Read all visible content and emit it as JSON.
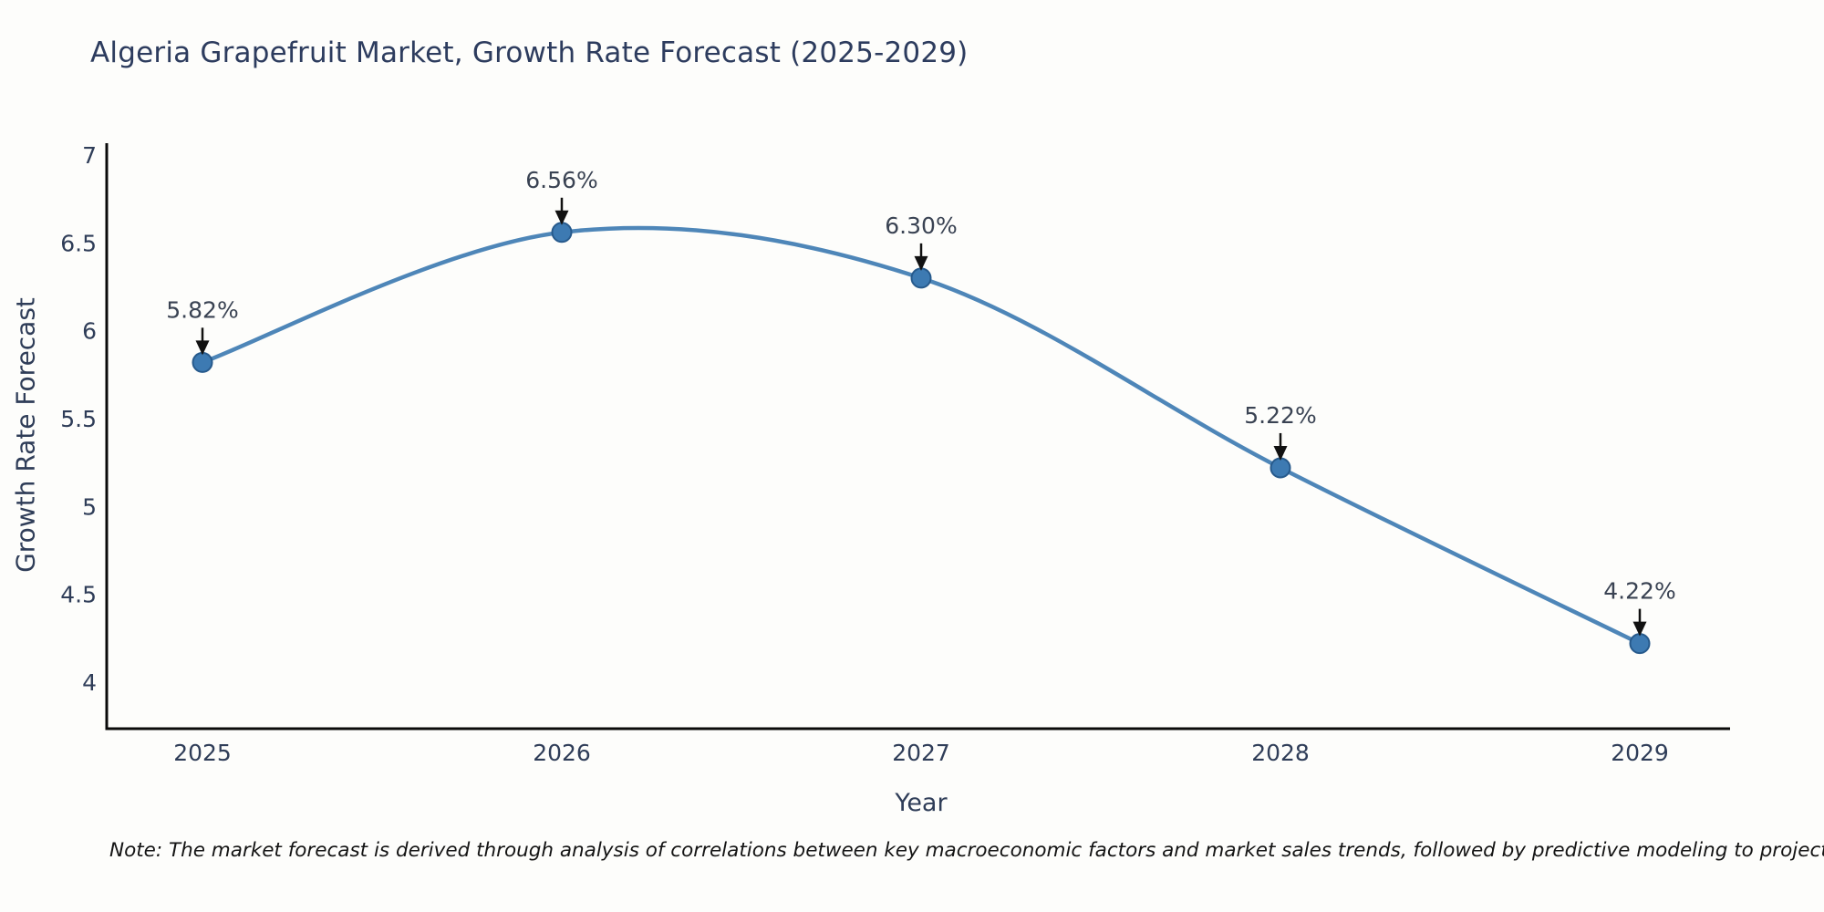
{
  "title": {
    "text": "Algeria Grapefruit Market, Growth Rate Forecast (2025-2029)"
  },
  "note": {
    "text": "Note: The market forecast is derived through analysis of correlations between key macroeconomic factors and market sales trends, followed by predictive modeling to project future sales"
  },
  "chart_data": {
    "type": "line",
    "title": "Algeria Grapefruit Market, Growth Rate Forecast (2025-2029)",
    "x": [
      "2025",
      "2026",
      "2027",
      "2028",
      "2029"
    ],
    "series": [
      {
        "name": "Growth Rate Forecast",
        "values": [
          5.82,
          6.56,
          6.3,
          5.22,
          4.22
        ]
      }
    ],
    "point_labels": [
      "5.82%",
      "6.56%",
      "6.30%",
      "5.22%",
      "4.22%"
    ],
    "xlabel": "Year",
    "ylabel": "Growth Rate Forecast",
    "ylim": [
      3.74,
      7.06
    ],
    "yticks": [
      7,
      6.5,
      6,
      5.5,
      5,
      4.5,
      4
    ],
    "ytick_labels": [
      "7",
      "6.5",
      "6",
      "5.5",
      "5",
      "4.5",
      "4"
    ],
    "grid": false,
    "legend": "none",
    "line_shape": "spline",
    "marker": "circle",
    "annotation_arrows": true
  },
  "colors": {
    "line": "#4e86b8",
    "marker_fill": "#3d7ab2",
    "marker_edge": "#275a8c",
    "axis_line": "#0a0a0a",
    "title_text": "#2d3c5e",
    "tick_text": "#2f3d58",
    "axis_title_text": "#2f3d58",
    "annotation_text": "#3a4353",
    "arrow": "#111111",
    "note_text": "#141414",
    "background": "#fdfdfb"
  }
}
